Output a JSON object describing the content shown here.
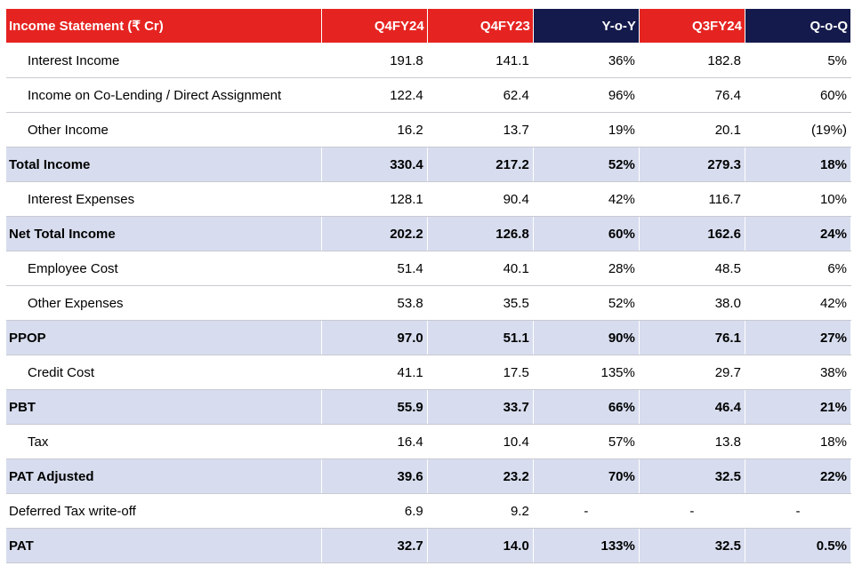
{
  "table": {
    "headers": [
      "Income Statement (₹ Cr)",
      "Q4FY24",
      "Q4FY23",
      "Y-o-Y",
      "Q3FY24",
      "Q-o-Q"
    ],
    "header_colors": [
      "#e52421",
      "#e52421",
      "#e52421",
      "#141a4b",
      "#e52421",
      "#141a4b"
    ],
    "rows": [
      {
        "label": "Interest Income",
        "values": [
          "191.8",
          "141.1",
          "36%",
          "182.8",
          "5%"
        ]
      },
      {
        "label": "Income on Co-Lending / Direct Assignment",
        "values": [
          "122.4",
          "62.4",
          "96%",
          "76.4",
          "60%"
        ]
      },
      {
        "label": "Other Income",
        "values": [
          "16.2",
          "13.7",
          "19%",
          "20.1",
          "(19%)"
        ]
      },
      {
        "label": "Total Income",
        "values": [
          "330.4",
          "217.2",
          "52%",
          "279.3",
          "18%"
        ]
      },
      {
        "label": "Interest Expenses",
        "values": [
          "128.1",
          "90.4",
          "42%",
          "116.7",
          "10%"
        ]
      },
      {
        "label": "Net Total Income",
        "values": [
          "202.2",
          "126.8",
          "60%",
          "162.6",
          "24%"
        ]
      },
      {
        "label": "Employee Cost",
        "values": [
          "51.4",
          "40.1",
          "28%",
          "48.5",
          "6%"
        ]
      },
      {
        "label": "Other Expenses",
        "values": [
          "53.8",
          "35.5",
          "52%",
          "38.0",
          "42%"
        ]
      },
      {
        "label": "PPOP",
        "values": [
          "97.0",
          "51.1",
          "90%",
          "76.1",
          "27%"
        ]
      },
      {
        "label": "Credit Cost",
        "values": [
          "41.1",
          "17.5",
          "135%",
          "29.7",
          "38%"
        ]
      },
      {
        "label": "PBT",
        "values": [
          "55.9",
          "33.7",
          "66%",
          "46.4",
          "21%"
        ]
      },
      {
        "label": "Tax",
        "values": [
          "16.4",
          "10.4",
          "57%",
          "13.8",
          "18%"
        ]
      },
      {
        "label": "PAT Adjusted",
        "values": [
          "39.6",
          "23.2",
          "70%",
          "32.5",
          "22%"
        ]
      },
      {
        "label": "Deferred Tax write-off",
        "values": [
          "6.9",
          "9.2",
          "-",
          "-",
          "-"
        ]
      },
      {
        "label": "PAT",
        "values": [
          "32.7",
          "14.0",
          "133%",
          "32.5",
          "0.5%"
        ]
      }
    ],
    "bold_rows": [
      "Total Income",
      "Net Total Income",
      "PPOP",
      "PBT",
      "PAT Adjusted",
      "PAT"
    ],
    "colors": {
      "highlight_row": "#d7ddee",
      "red": "#e52421",
      "navy": "#141a4b"
    }
  }
}
